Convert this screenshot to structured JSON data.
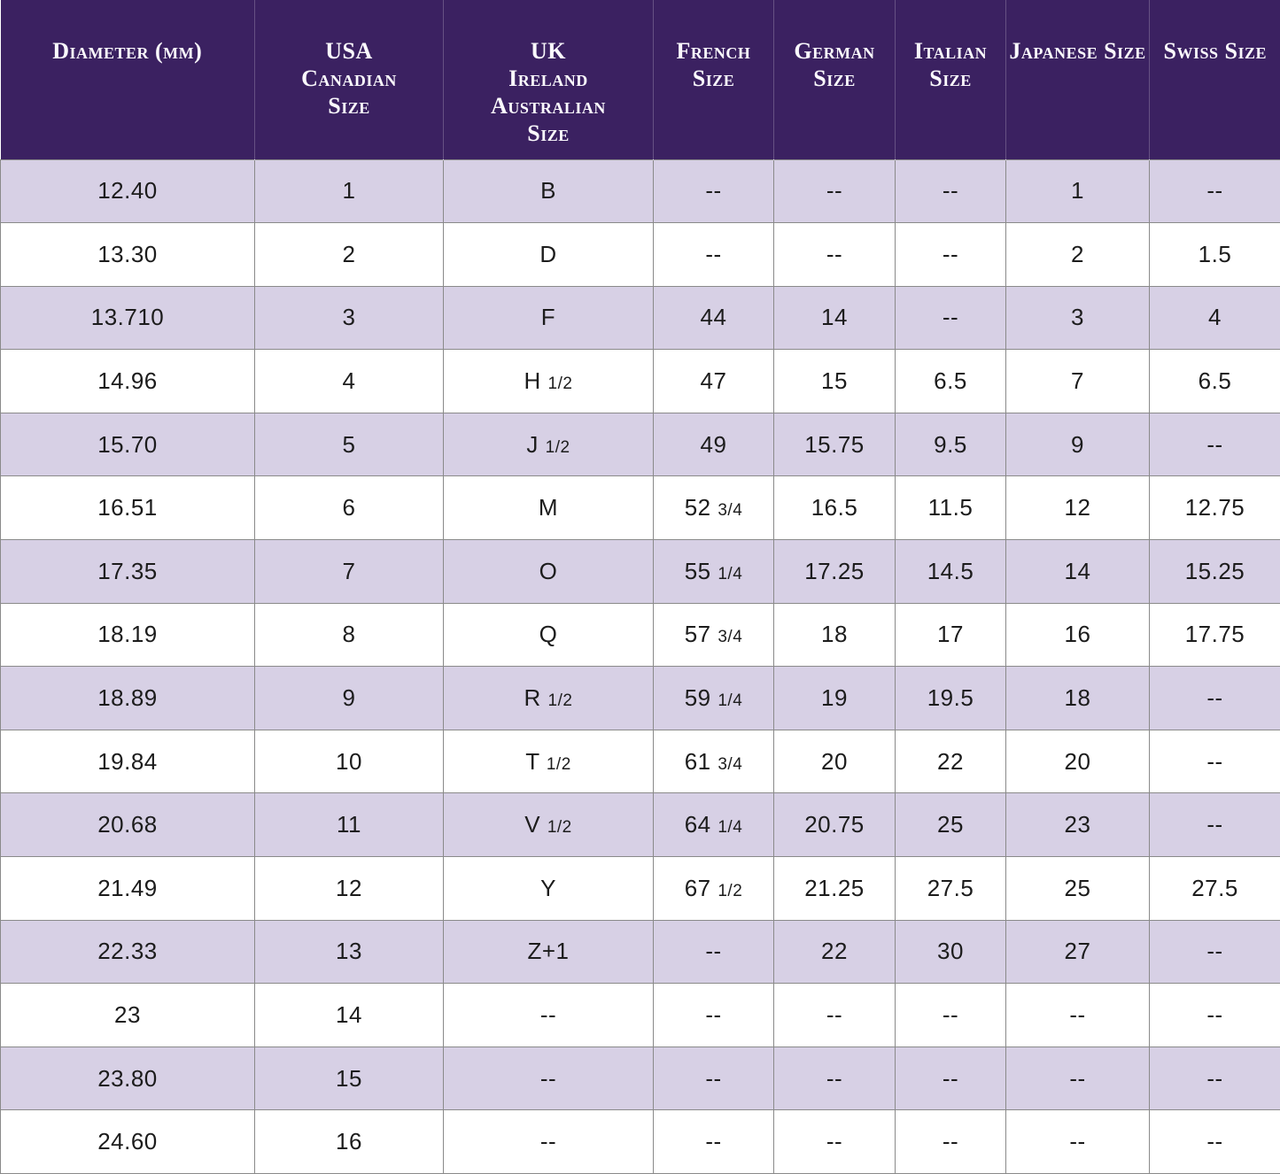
{
  "chart_data": {
    "type": "table",
    "columns": [
      {
        "name": "diameter-mm",
        "lines": [
          "Diameter (mm)"
        ]
      },
      {
        "name": "usa-canadian-size",
        "lines": [
          "USA",
          "Canadian",
          "Size"
        ]
      },
      {
        "name": "uk-ireland-australian-size",
        "lines": [
          "UK",
          "Ireland",
          "Australian",
          "Size"
        ]
      },
      {
        "name": "french-size",
        "lines": [
          "French",
          "Size"
        ]
      },
      {
        "name": "german-size",
        "lines": [
          "German",
          "Size"
        ]
      },
      {
        "name": "italian-size",
        "lines": [
          "Italian",
          "Size"
        ]
      },
      {
        "name": "japanese-size",
        "lines": [
          "Japanese Size"
        ]
      },
      {
        "name": "swiss-size",
        "lines": [
          "Swiss Size"
        ]
      }
    ],
    "rows": [
      [
        "12.40",
        "1",
        "B",
        "--",
        "--",
        "--",
        "1",
        "--"
      ],
      [
        "13.30",
        "2",
        "D",
        "--",
        "--",
        "--",
        "2",
        "1.5"
      ],
      [
        "13.710",
        "3",
        "F",
        "44",
        "14",
        "--",
        "3",
        "4"
      ],
      [
        "14.96",
        "4",
        "H 1/2",
        "47",
        "15",
        "6.5",
        "7",
        "6.5"
      ],
      [
        "15.70",
        "5",
        "J 1/2",
        "49",
        "15.75",
        "9.5",
        "9",
        "--"
      ],
      [
        "16.51",
        "6",
        "M",
        "52 3/4",
        "16.5",
        "11.5",
        "12",
        "12.75"
      ],
      [
        "17.35",
        "7",
        "O",
        "55 1/4",
        "17.25",
        "14.5",
        "14",
        "15.25"
      ],
      [
        "18.19",
        "8",
        "Q",
        "57 3/4",
        "18",
        "17",
        "16",
        "17.75"
      ],
      [
        "18.89",
        "9",
        "R 1/2",
        "59 1/4",
        "19",
        "19.5",
        "18",
        "--"
      ],
      [
        "19.84",
        "10",
        "T 1/2",
        "61 3/4",
        "20",
        "22",
        "20",
        "--"
      ],
      [
        "20.68",
        "11",
        "V 1/2",
        "64 1/4",
        "20.75",
        "25",
        "23",
        "--"
      ],
      [
        "21.49",
        "12",
        "Y",
        "67 1/2",
        "21.25",
        "27.5",
        "25",
        "27.5"
      ],
      [
        "22.33",
        "13",
        "Z+1",
        "--",
        "22",
        "30",
        "27",
        "--"
      ],
      [
        "23",
        "14",
        "--",
        "--",
        "--",
        "--",
        "--",
        "--"
      ],
      [
        "23.80",
        "15",
        "--",
        "--",
        "--",
        "--",
        "--",
        "--"
      ],
      [
        "24.60",
        "16",
        "--",
        "--",
        "--",
        "--",
        "--",
        "--"
      ]
    ]
  },
  "colors": {
    "header_bg": "#3b2161",
    "header_text": "#fbf9fd",
    "row_alt_bg": "#d7d0e5",
    "row_bg": "#ffffff",
    "cell_text": "#1c1c1c",
    "border": "#8a8a8a"
  }
}
